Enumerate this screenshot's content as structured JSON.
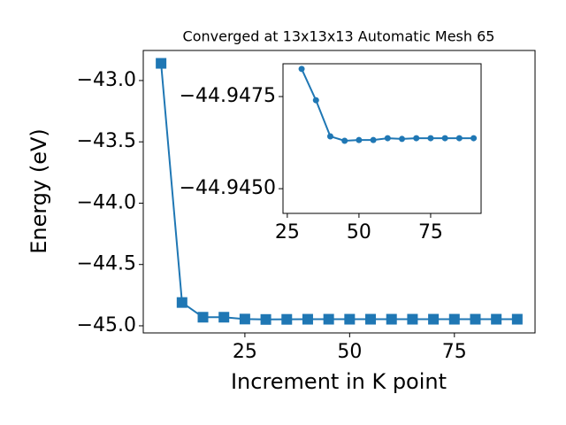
{
  "chart_data": [
    {
      "type": "line",
      "title": "Converged at 13x13x13 Automatic Mesh 65",
      "x_label": "Increment in K point",
      "y_label": "Energy (eV)",
      "marker": "square",
      "color": "#1f77b4",
      "x": [
        5,
        10,
        15,
        20,
        25,
        30,
        35,
        40,
        45,
        50,
        55,
        60,
        65,
        70,
        75,
        80,
        85,
        90
      ],
      "values": [
        -42.86,
        -44.81,
        -44.93,
        -44.93,
        -44.945,
        -44.94825,
        -44.9474,
        -44.94642,
        -44.9463,
        -44.94632,
        -44.94632,
        -44.94637,
        -44.94635,
        -44.94637,
        -44.94637,
        -44.94637,
        -44.94637,
        -44.94637
      ],
      "xlim": [
        0.75,
        94.25
      ],
      "ylim": [
        -45.058,
        -42.755
      ],
      "xticks": [
        25,
        50,
        75
      ],
      "yticks": [
        {
          "value": -45.0,
          "label": "−45.0"
        },
        {
          "value": -44.5,
          "label": "−44.5"
        },
        {
          "value": -44.0,
          "label": "−44.0"
        },
        {
          "value": -43.5,
          "label": "−43.5"
        },
        {
          "value": -43.0,
          "label": "−43.0"
        }
      ]
    },
    {
      "type": "line",
      "marker": "circle",
      "color": "#1f77b4",
      "x": [
        30,
        35,
        40,
        45,
        50,
        55,
        60,
        65,
        70,
        75,
        80,
        85,
        90
      ],
      "values": [
        -44.94825,
        -44.9474,
        -44.94642,
        -44.9463,
        -44.94632,
        -44.94632,
        -44.94637,
        -44.94635,
        -44.94637,
        -44.94637,
        -44.94637,
        -44.94637,
        -44.94637
      ],
      "xlim": [
        23.5,
        92.6
      ],
      "ylim": [
        -44.94433,
        -44.94839
      ],
      "xticks": [
        25,
        50,
        75
      ],
      "yticks": [
        {
          "value": -44.9475,
          "label": "−44.9475"
        },
        {
          "value": -44.945,
          "label": "−44.9450"
        }
      ]
    }
  ]
}
